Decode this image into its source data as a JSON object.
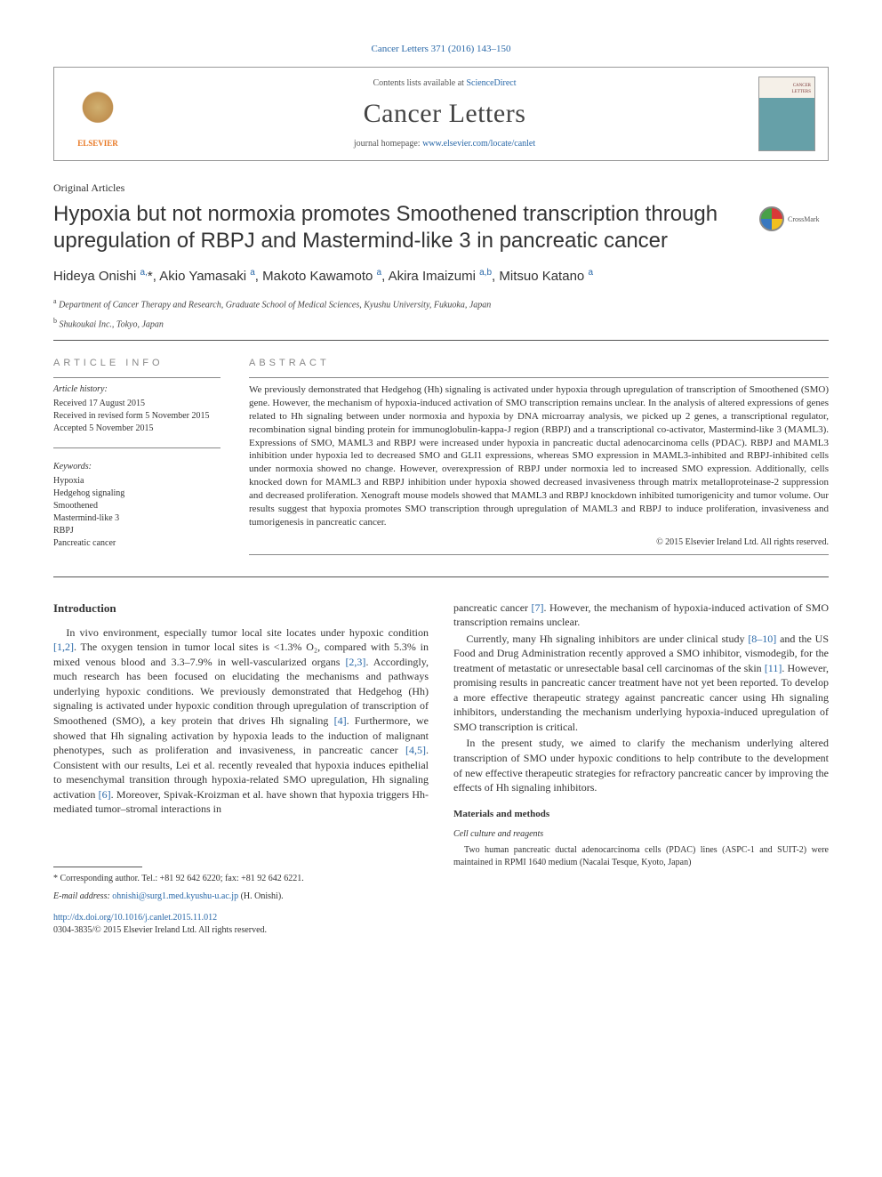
{
  "journal_ref": "Cancer Letters 371 (2016) 143–150",
  "header": {
    "contents_prefix": "Contents lists available at ",
    "contents_link": "ScienceDirect",
    "journal_name": "Cancer Letters",
    "homepage_prefix": "journal homepage: ",
    "homepage_url": "www.elsevier.com/locate/canlet",
    "publisher_logo": "ELSEVIER"
  },
  "article_type": "Original Articles",
  "title": "Hypoxia but not normoxia promotes Smoothened transcription through upregulation of RBPJ and Mastermind-like 3 in pancreatic cancer",
  "crossmark_label": "CrossMark",
  "authors_html": "Hideya Onishi <sup>a,</sup><span class='star'>*</span>, Akio Yamasaki <sup>a</sup>, Makoto Kawamoto <sup>a</sup>, Akira Imaizumi <sup>a,b</sup>, Mitsuo Katano <sup>a</sup>",
  "affiliations": {
    "a": "Department of Cancer Therapy and Research, Graduate School of Medical Sciences, Kyushu University, Fukuoka, Japan",
    "b": "Shukoukai Inc., Tokyo, Japan"
  },
  "info": {
    "section_label": "ARTICLE INFO",
    "history_label": "Article history:",
    "received": "Received 17 August 2015",
    "revised": "Received in revised form 5 November 2015",
    "accepted": "Accepted 5 November 2015",
    "keywords_label": "Keywords:",
    "keywords": [
      "Hypoxia",
      "Hedgehog signaling",
      "Smoothened",
      "Mastermind-like 3",
      "RBPJ",
      "Pancreatic cancer"
    ]
  },
  "abstract": {
    "section_label": "ABSTRACT",
    "text": "We previously demonstrated that Hedgehog (Hh) signaling is activated under hypoxia through upregulation of transcription of Smoothened (SMO) gene. However, the mechanism of hypoxia-induced activation of SMO transcription remains unclear. In the analysis of altered expressions of genes related to Hh signaling between under normoxia and hypoxia by DNA microarray analysis, we picked up 2 genes, a transcriptional regulator, recombination signal binding protein for immunoglobulin-kappa-J region (RBPJ) and a transcriptional co-activator, Mastermind-like 3 (MAML3). Expressions of SMO, MAML3 and RBPJ were increased under hypoxia in pancreatic ductal adenocarcinoma cells (PDAC). RBPJ and MAML3 inhibition under hypoxia led to decreased SMO and GLI1 expressions, whereas SMO expression in MAML3-inhibited and RBPJ-inhibited cells under normoxia showed no change. However, overexpression of RBPJ under normoxia led to increased SMO expression. Additionally, cells knocked down for MAML3 and RBPJ inhibition under hypoxia showed decreased invasiveness through matrix metalloproteinase-2 suppression and decreased proliferation. Xenograft mouse models showed that MAML3 and RBPJ knockdown inhibited tumorigenicity and tumor volume. Our results suggest that hypoxia promotes SMO transcription through upregulation of MAML3 and RBPJ to induce proliferation, invasiveness and tumorigenesis in pancreatic cancer.",
    "copyright": "© 2015 Elsevier Ireland Ltd. All rights reserved."
  },
  "body": {
    "intro_heading": "Introduction",
    "p1": "In vivo environment, especially tumor local site locates under hypoxic condition [1,2]. The oxygen tension in tumor local sites is <1.3% O₂, compared with 5.3% in mixed venous blood and 3.3–7.9% in well-vascularized organs [2,3]. Accordingly, much research has been focused on elucidating the mechanisms and pathways underlying hypoxic conditions. We previously demonstrated that Hedgehog (Hh) signaling is activated under hypoxic condition through upregulation of transcription of Smoothened (SMO), a key protein that drives Hh signaling [4]. Furthermore, we showed that Hh signaling activation by hypoxia leads to the induction of malignant phenotypes, such as proliferation and invasiveness, in pancreatic cancer [4,5]. Consistent with our results, Lei et al. recently revealed that hypoxia induces epithelial to mesenchymal transition through hypoxia-related SMO upregulation, Hh signaling activation [6]. Moreover, Spivak-Kroizman et al. have shown that hypoxia triggers Hh-mediated tumor–stromal interactions in",
    "p2": "pancreatic cancer [7]. However, the mechanism of hypoxia-induced activation of SMO transcription remains unclear.",
    "p3": "Currently, many Hh signaling inhibitors are under clinical study [8–10] and the US Food and Drug Administration recently approved a SMO inhibitor, vismodegib, for the treatment of metastatic or unresectable basal cell carcinomas of the skin [11]. However, promising results in pancreatic cancer treatment have not yet been reported. To develop a more effective therapeutic strategy against pancreatic cancer using Hh signaling inhibitors, understanding the mechanism underlying hypoxia-induced upregulation of SMO transcription is critical.",
    "p4": "In the present study, we aimed to clarify the mechanism underlying altered transcription of SMO under hypoxic conditions to help contribute to the development of new effective therapeutic strategies for refractory pancreatic cancer by improving the effects of Hh signaling inhibitors.",
    "mm_heading": "Materials and methods",
    "cc_heading": "Cell culture and reagents",
    "mm_p1": "Two human pancreatic ductal adenocarcinoma cells (PDAC) lines (ASPC-1 and SUIT-2) were maintained in RPMI 1640 medium (Nacalai Tesque, Kyoto, Japan)"
  },
  "footer": {
    "corresponding": "* Corresponding author. Tel.: +81 92 642 6220; fax: +81 92 642 6221.",
    "email_label": "E-mail address: ",
    "email": "ohnishi@surg1.med.kyushu-u.ac.jp",
    "email_suffix": " (H. Onishi).",
    "doi": "http://dx.doi.org/10.1016/j.canlet.2015.11.012",
    "issn_copyright": "0304-3835/© 2015 Elsevier Ireland Ltd. All rights reserved."
  },
  "colors": {
    "link": "#2968a8",
    "text": "#333333",
    "elsevier_orange": "#e87722",
    "rule": "#555555"
  }
}
